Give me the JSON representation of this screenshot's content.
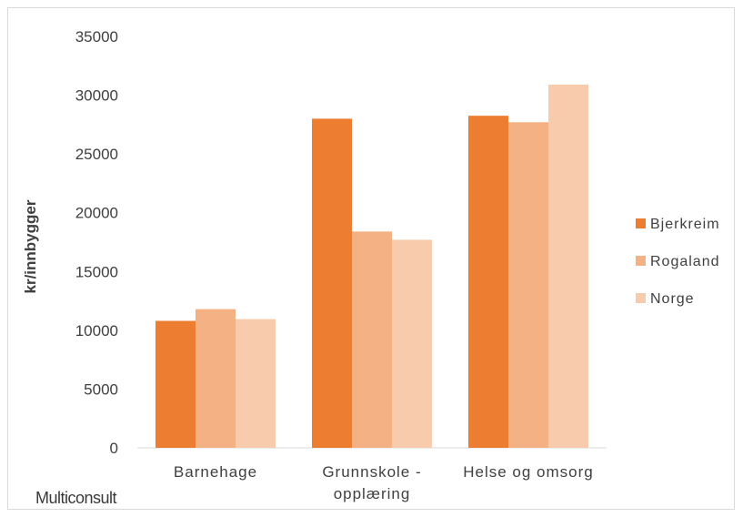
{
  "chart_data": {
    "type": "bar",
    "title": "",
    "xlabel": "",
    "ylabel": "kr/innbygger",
    "ylim": [
      0,
      35000
    ],
    "yticks": [
      "0",
      "5000",
      "10000",
      "15000",
      "20000",
      "25000",
      "30000",
      "35000"
    ],
    "categories": [
      [
        "Barnehage"
      ],
      [
        "Grunnskole -",
        "opplæring"
      ],
      [
        "Helse og omsorg"
      ]
    ],
    "series": [
      {
        "name": "Bjerkreim",
        "color": "#ed7d31",
        "values": [
          10800,
          28000,
          28250
        ]
      },
      {
        "name": "Rogaland",
        "color": "#f4b183",
        "values": [
          11800,
          18400,
          27700
        ]
      },
      {
        "name": "Norge",
        "color": "#f8cbad",
        "values": [
          10950,
          17700,
          30900
        ]
      }
    ],
    "legend_position": "right",
    "grid": false
  },
  "footer": {
    "brand": "Multiconsult"
  }
}
